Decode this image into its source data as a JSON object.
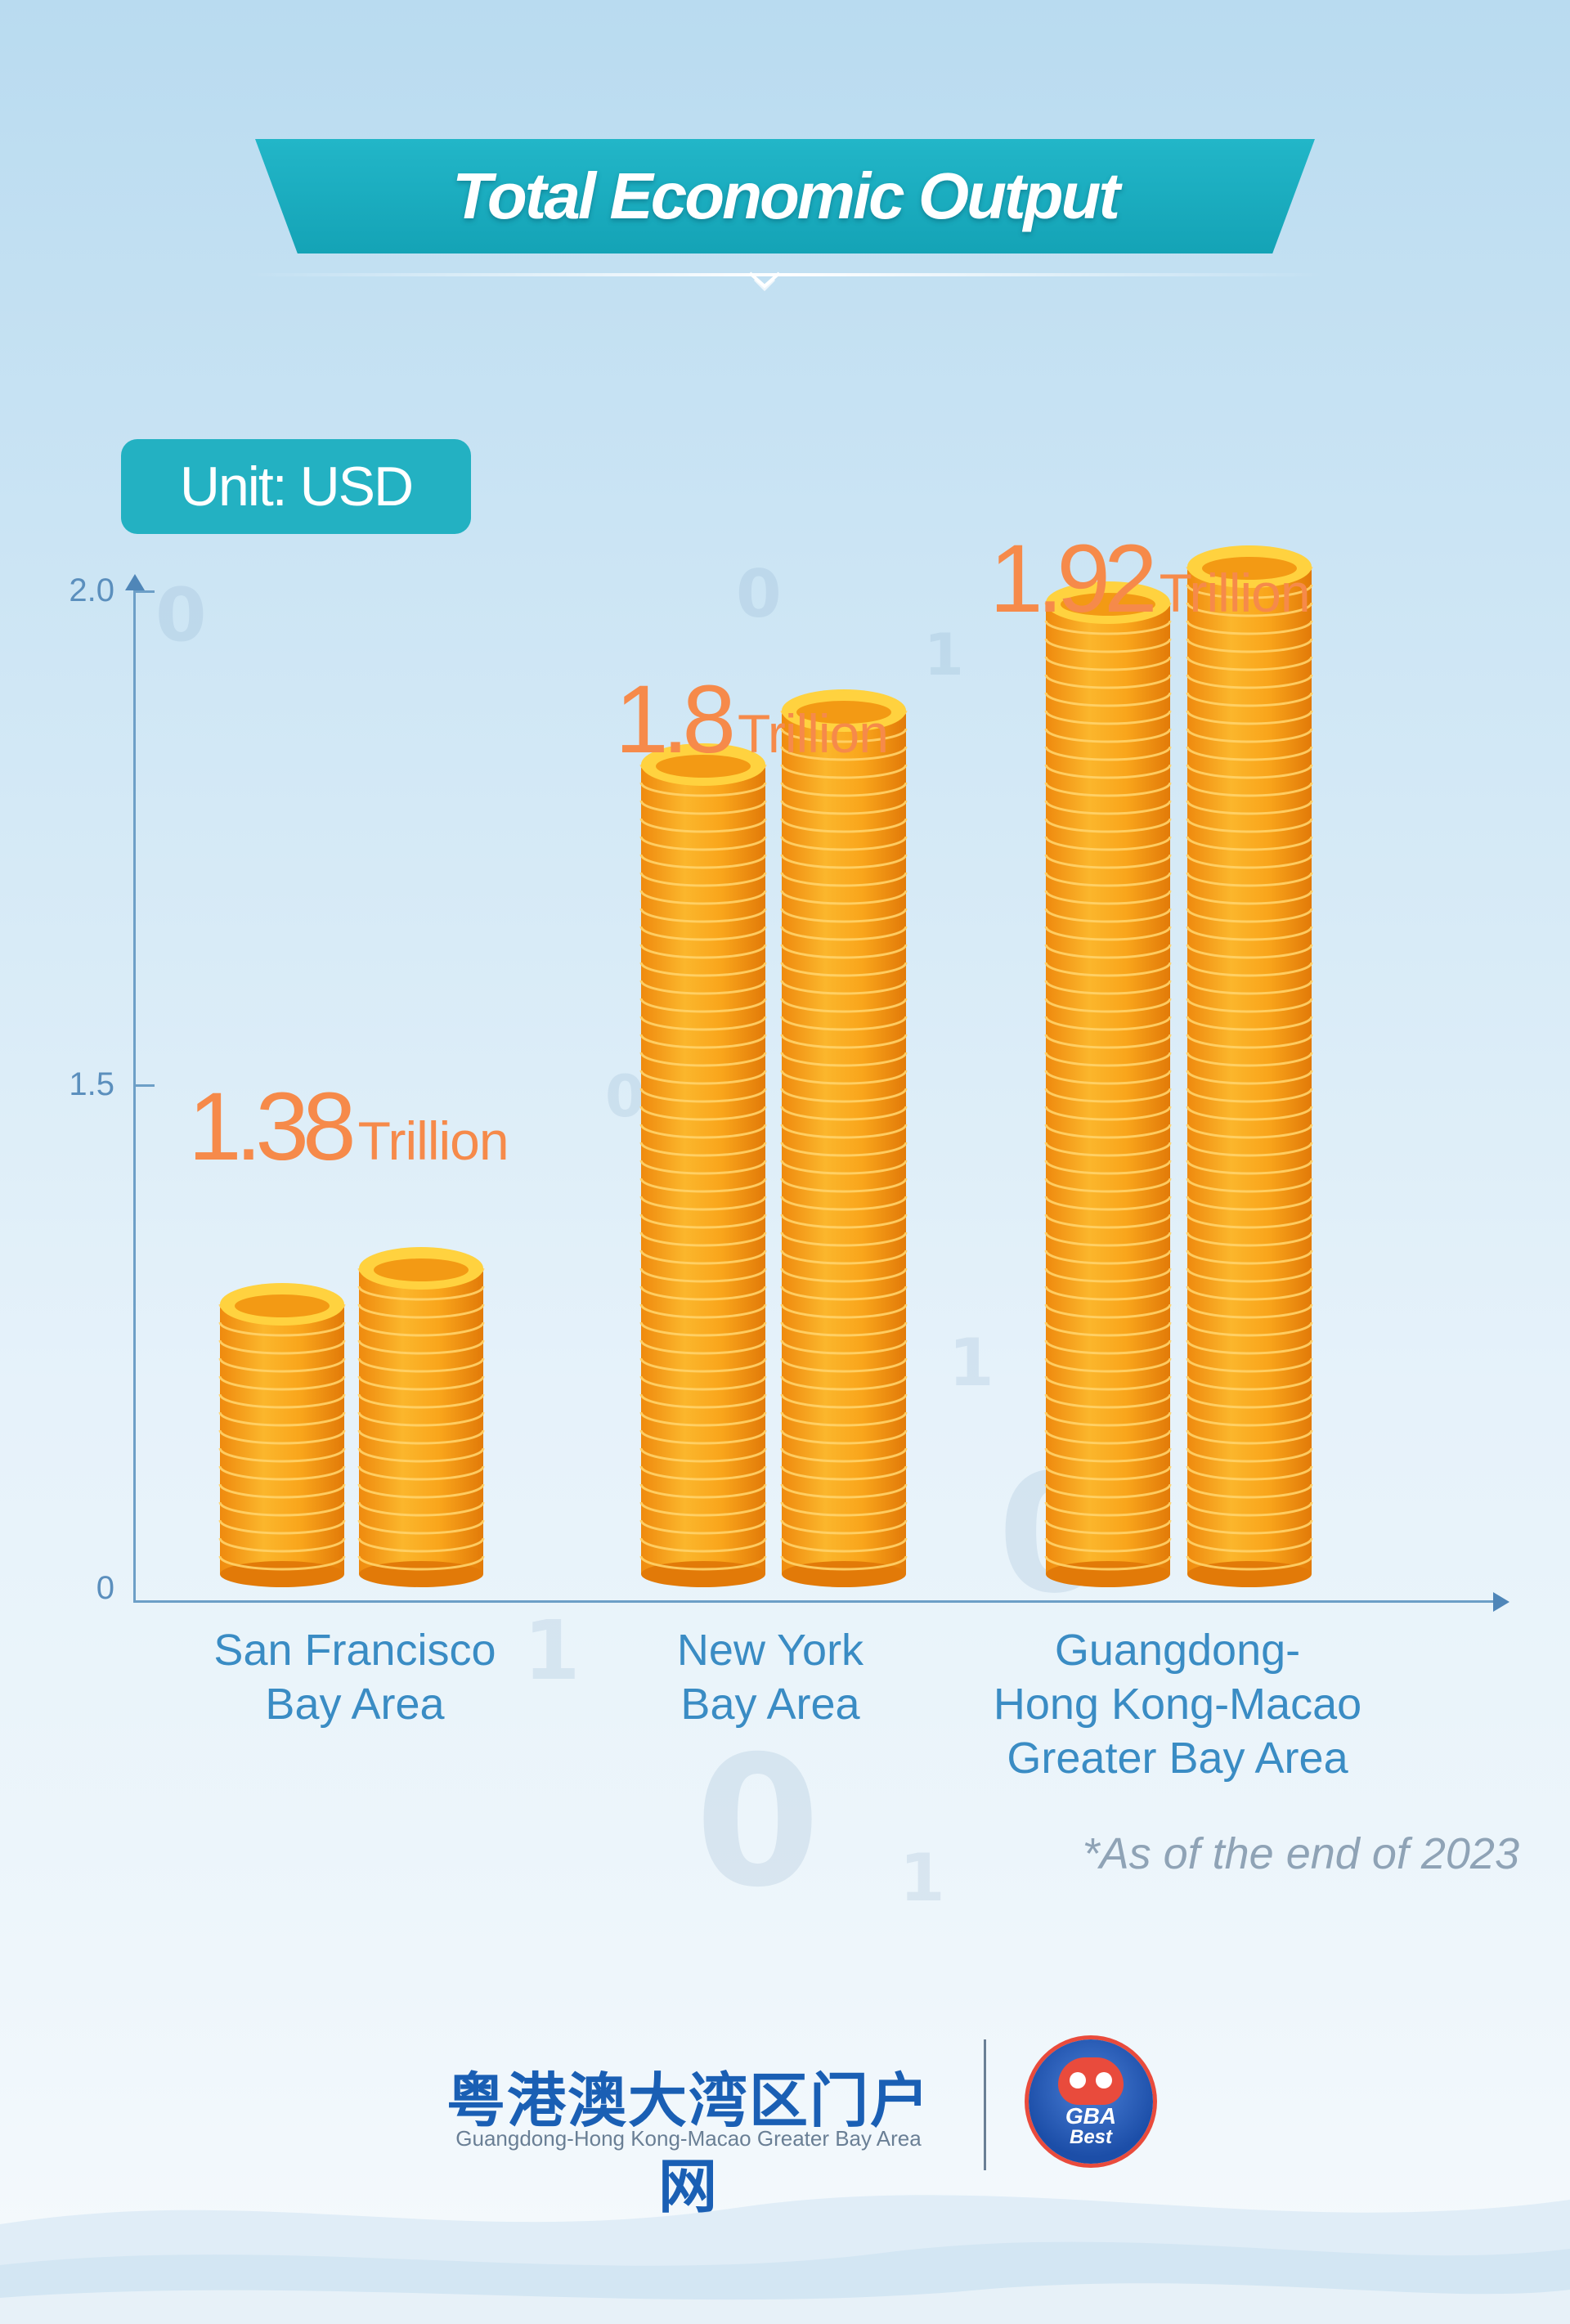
{
  "title": "Total Economic Output",
  "unit_badge": "Unit: USD",
  "footnote": "*As of the end of 2023",
  "footer": {
    "cn_name": "粤港澳大湾区门户网",
    "en_name": "Guangdong-Hong Kong-Macao Greater Bay Area",
    "logo_line1": "GBA",
    "logo_line2": "Best"
  },
  "colors": {
    "accent": "#1aaabb",
    "value_label": "#f68a4a",
    "coin": "#f7a21c",
    "axis": "#6d9fc7",
    "category_text": "#3a8cc4"
  },
  "chart_data": {
    "type": "bar",
    "title": "Total Economic Output",
    "ylabel": "",
    "xlabel": "",
    "yticks": [
      "0",
      "1.5",
      "2.0"
    ],
    "categories": [
      "San Francisco\nBay Area",
      "New York\nBay Area",
      "Guangdong-\nHong Kong-Macao\nGreater Bay Area"
    ],
    "values": [
      1.38,
      1.8,
      1.92
    ],
    "value_labels": [
      {
        "number": "1.38",
        "unit": "Trillion"
      },
      {
        "number": "1.8",
        "unit": "Trillion"
      },
      {
        "number": "1.92",
        "unit": "Trillion"
      }
    ],
    "icon": "coin-stack-icon",
    "grid": false,
    "legend": "none"
  }
}
